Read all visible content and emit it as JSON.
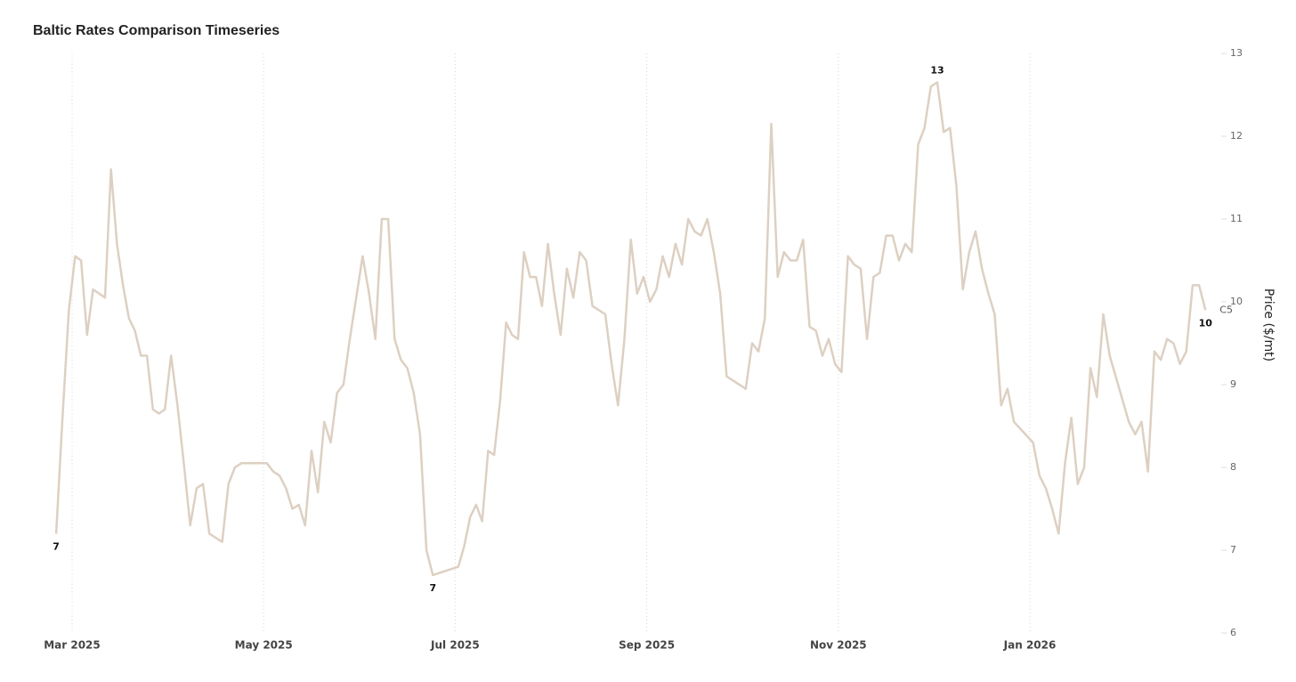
{
  "chart_data": {
    "type": "line",
    "title": "Baltic Rates Comparison Timeseries",
    "y_label": "Price ($/mt)",
    "ylim": [
      6,
      13
    ],
    "yticks": [
      6,
      7,
      8,
      9,
      10,
      11,
      12,
      13
    ],
    "xticks": [
      {
        "value": "2025-03",
        "label": "Mar 2025"
      },
      {
        "value": "2025-05",
        "label": "May 2025"
      },
      {
        "value": "2025-07",
        "label": "Jul 2025"
      },
      {
        "value": "2025-09",
        "label": "Sep 2025"
      },
      {
        "value": "2025-11",
        "label": "Nov 2025"
      },
      {
        "value": "2026-01",
        "label": "Jan 2026"
      }
    ],
    "grid": true,
    "x": [
      "2025-02",
      "2025-02",
      "2025-02",
      "2025-03",
      "2025-03",
      "2025-03",
      "2025-03",
      "2025-03",
      "2025-03",
      "2025-03",
      "2025-03",
      "2025-03",
      "2025-03",
      "2025-03",
      "2025-03",
      "2025-03",
      "2025-03",
      "2025-03",
      "2025-03",
      "2025-04",
      "2025-04",
      "2025-04",
      "2025-04",
      "2025-04",
      "2025-04",
      "2025-04",
      "2025-04",
      "2025-04",
      "2025-04",
      "2025-04",
      "2025-04",
      "2025-05",
      "2025-05",
      "2025-05",
      "2025-05",
      "2025-05",
      "2025-05",
      "2025-05",
      "2025-05",
      "2025-05",
      "2025-05",
      "2025-05",
      "2025-05",
      "2025-05",
      "2025-05",
      "2025-06",
      "2025-06",
      "2025-06",
      "2025-06",
      "2025-06",
      "2025-06",
      "2025-06",
      "2025-06",
      "2025-06",
      "2025-06",
      "2025-06",
      "2025-06",
      "2025-07",
      "2025-07",
      "2025-07",
      "2025-07",
      "2025-07",
      "2025-07",
      "2025-07",
      "2025-07",
      "2025-07",
      "2025-07",
      "2025-07",
      "2025-07",
      "2025-07",
      "2025-07",
      "2025-07",
      "2025-07",
      "2025-08",
      "2025-08",
      "2025-08",
      "2025-08",
      "2025-08",
      "2025-08",
      "2025-08",
      "2025-08",
      "2025-08",
      "2025-08",
      "2025-08",
      "2025-08",
      "2025-08",
      "2025-08",
      "2025-08",
      "2025-09",
      "2025-09",
      "2025-09",
      "2025-09",
      "2025-09",
      "2025-09",
      "2025-09",
      "2025-09",
      "2025-09",
      "2025-09",
      "2025-09",
      "2025-09",
      "2025-09",
      "2025-10",
      "2025-10",
      "2025-10",
      "2025-10",
      "2025-10",
      "2025-10",
      "2025-10",
      "2025-10",
      "2025-10",
      "2025-10",
      "2025-10",
      "2025-10",
      "2025-10",
      "2025-10",
      "2025-10",
      "2025-11",
      "2025-11",
      "2025-11",
      "2025-11",
      "2025-11",
      "2025-11",
      "2025-11",
      "2025-11",
      "2025-11",
      "2025-11",
      "2025-11",
      "2025-11",
      "2025-11",
      "2025-11",
      "2025-11",
      "2025-12",
      "2025-12",
      "2025-12",
      "2025-12",
      "2025-12",
      "2025-12",
      "2025-12",
      "2025-12",
      "2025-12",
      "2025-12",
      "2025-12",
      "2025-12",
      "2025-12",
      "2026-01",
      "2026-01",
      "2026-01",
      "2026-01",
      "2026-01",
      "2026-01",
      "2026-01",
      "2026-01",
      "2026-01",
      "2026-01",
      "2026-01",
      "2026-01",
      "2026-01",
      "2026-02",
      "2026-02",
      "2026-02",
      "2026-02",
      "2026-02",
      "2026-02",
      "2026-02",
      "2026-02",
      "2026-02",
      "2026-02",
      "2026-02",
      "2026-02",
      "2026-02"
    ],
    "series": [
      {
        "name": "C5",
        "color": "#ddd0c2",
        "values": [
          7.2,
          8.6,
          9.9,
          10.55,
          10.5,
          9.6,
          10.15,
          10.1,
          10.05,
          11.6,
          10.7,
          10.2,
          9.8,
          9.65,
          9.35,
          9.35,
          8.7,
          8.65,
          8.7,
          9.35,
          8.75,
          8.05,
          7.3,
          7.75,
          7.8,
          7.2,
          7.15,
          7.1,
          7.8,
          8.0,
          8.05,
          8.05,
          7.95,
          7.9,
          7.75,
          7.5,
          7.55,
          7.3,
          8.2,
          7.7,
          8.55,
          8.3,
          8.9,
          9.0,
          9.55,
          10.55,
          10.1,
          9.55,
          11.0,
          11.0,
          9.55,
          9.3,
          9.2,
          8.9,
          8.4,
          7.0,
          6.7,
          6.8,
          7.05,
          7.4,
          7.55,
          7.35,
          8.2,
          8.15,
          8.8,
          9.75,
          9.6,
          9.55,
          10.6,
          10.3,
          10.3,
          9.95,
          10.7,
          10.1,
          9.6,
          10.4,
          10.05,
          10.6,
          10.5,
          9.95,
          9.9,
          9.85,
          9.25,
          8.75,
          9.55,
          10.75,
          10.1,
          10.3,
          10.0,
          10.15,
          10.55,
          10.3,
          10.7,
          10.45,
          11.0,
          10.85,
          10.8,
          11.0,
          10.6,
          10.1,
          9.1,
          8.95,
          9.5,
          9.4,
          9.8,
          12.15,
          10.3,
          10.6,
          10.5,
          10.5,
          10.75,
          9.7,
          9.65,
          9.35,
          9.55,
          9.25,
          9.15,
          10.55,
          10.45,
          10.4,
          9.55,
          10.3,
          10.35,
          10.8,
          10.8,
          10.5,
          10.7,
          10.6,
          11.9,
          12.1,
          12.6,
          12.65,
          12.05,
          12.1,
          11.4,
          10.15,
          10.6,
          10.85,
          10.4,
          10.1,
          9.85,
          8.75,
          8.95,
          8.55,
          8.3,
          7.9,
          7.75,
          7.5,
          7.2,
          8.05,
          8.6,
          7.8,
          8.0,
          9.2,
          8.85,
          9.85,
          9.35,
          8.55,
          8.4,
          8.55,
          7.95,
          9.4,
          9.3,
          9.55,
          9.5,
          9.25,
          9.4,
          10.2,
          10.2,
          9.9
        ],
        "value_labels": [
          "7",
          null,
          null,
          null,
          null,
          null,
          null,
          null,
          null,
          null,
          null,
          null,
          null,
          null,
          null,
          null,
          null,
          null,
          null,
          null,
          null,
          null,
          null,
          null,
          null,
          null,
          null,
          null,
          null,
          null,
          null,
          null,
          null,
          null,
          null,
          null,
          null,
          null,
          null,
          null,
          null,
          null,
          null,
          null,
          null,
          null,
          null,
          null,
          null,
          null,
          null,
          null,
          null,
          null,
          null,
          null,
          "7",
          null,
          null,
          null,
          null,
          null,
          null,
          null,
          null,
          null,
          null,
          null,
          null,
          null,
          null,
          null,
          null,
          null,
          null,
          null,
          null,
          null,
          null,
          null,
          null,
          null,
          null,
          null,
          null,
          null,
          null,
          null,
          null,
          null,
          null,
          null,
          null,
          null,
          null,
          null,
          null,
          null,
          null,
          null,
          null,
          null,
          null,
          null,
          null,
          null,
          null,
          null,
          null,
          null,
          null,
          null,
          null,
          null,
          null,
          null,
          null,
          null,
          null,
          null,
          null,
          null,
          null,
          null,
          null,
          null,
          null,
          null,
          null,
          null,
          null,
          "13",
          null,
          null,
          null,
          null,
          null,
          null,
          null,
          null,
          null,
          null,
          null,
          null,
          null,
          null,
          null,
          null,
          null,
          null,
          null,
          null,
          null,
          null,
          null,
          null,
          null,
          null,
          null,
          null,
          null,
          null,
          null,
          null,
          null,
          null,
          null,
          null,
          null,
          "10"
        ]
      }
    ]
  }
}
